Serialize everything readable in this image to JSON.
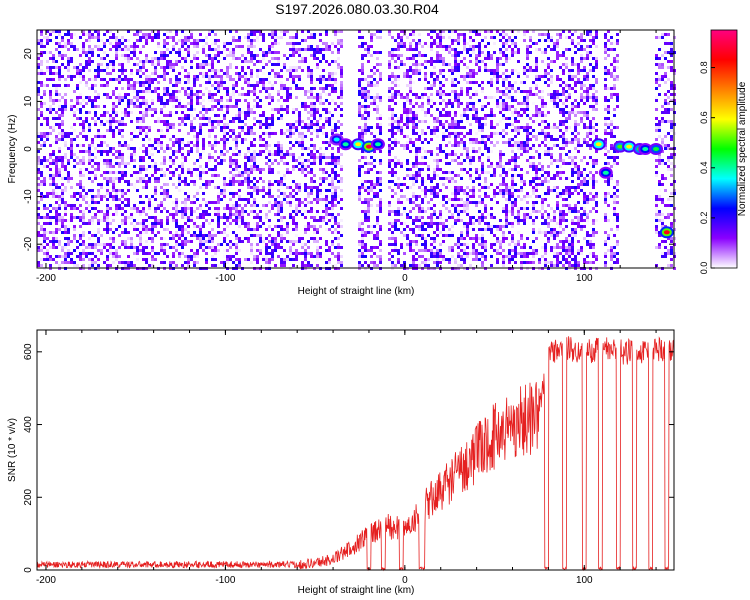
{
  "title": "S197.2026.080.03.30.R04",
  "chart_data": [
    {
      "type": "heatmap",
      "title": "S197.2026.080.03.30.R04",
      "xlabel": "Height of straight line (km)",
      "ylabel": "Frequency (Hz)",
      "xlim": [
        -205,
        150
      ],
      "ylim": [
        -25,
        25
      ],
      "x_ticks": [
        -200,
        -100,
        0,
        100
      ],
      "y_ticks": [
        -20,
        -10,
        0,
        10,
        20
      ],
      "colorbar": {
        "label": "Normalized spectral amplitude",
        "range": [
          0,
          0.95
        ],
        "ticks": [
          0.0,
          0.2,
          0.4,
          0.6,
          0.8
        ],
        "colors": [
          "#ffffff",
          "#8a00ff",
          "#0000ff",
          "#00ffff",
          "#00ff00",
          "#ffff00",
          "#ff8000",
          "#ff0000",
          "#ff0080"
        ]
      },
      "noise_level": 0.1,
      "blank_gaps_km": [
        [
          -35,
          -27
        ],
        [
          -14,
          -10
        ],
        [
          106,
          110
        ],
        [
          118,
          138
        ]
      ],
      "strong_features": [
        {
          "x": -38,
          "f": 2,
          "amp": 0.35
        },
        {
          "x": -33,
          "f": 1,
          "amp": 0.4
        },
        {
          "x": -26,
          "f": 1,
          "amp": 0.6
        },
        {
          "x": -20,
          "f": 0.5,
          "amp": 0.88
        },
        {
          "x": -15,
          "f": 1,
          "amp": 0.4
        },
        {
          "x": 108,
          "f": 1,
          "amp": 0.6
        },
        {
          "x": 112,
          "f": -5,
          "amp": 0.4
        },
        {
          "x": 120,
          "f": 0.5,
          "amp": 0.5
        },
        {
          "x": 125,
          "f": 0.5,
          "amp": 0.6
        },
        {
          "x": 131,
          "f": 0,
          "amp": 0.5
        },
        {
          "x": 134,
          "f": 0,
          "amp": 0.4
        },
        {
          "x": 140,
          "f": 0,
          "amp": 0.45
        },
        {
          "x": 146,
          "f": -17.5,
          "amp": 0.85
        }
      ]
    },
    {
      "type": "line",
      "xlabel": "Height of straight line (km)",
      "ylabel": "SNR (10 * v/v)",
      "xlim": [
        -205,
        150
      ],
      "ylim": [
        0,
        660
      ],
      "x_ticks": [
        -200,
        -100,
        0,
        100
      ],
      "y_ticks": [
        0,
        200,
        400,
        600
      ],
      "series": [
        {
          "name": "SNR",
          "color": "#e52020",
          "x": [
            -205,
            -60,
            -50,
            -40,
            -30,
            -20,
            -10,
            0,
            10,
            20,
            30,
            40,
            50,
            60,
            70,
            75,
            80,
            90,
            100,
            110,
            120,
            130,
            140,
            150
          ],
          "y": [
            15,
            15,
            20,
            30,
            60,
            100,
            120,
            110,
            170,
            220,
            270,
            320,
            370,
            400,
            420,
            440,
            600,
            610,
            600,
            610,
            600,
            600,
            610,
            600
          ]
        }
      ],
      "dropouts_km": [
        [
          -21,
          -19
        ],
        [
          -13,
          -11
        ],
        [
          -3,
          -1
        ],
        [
          8,
          11
        ],
        [
          78,
          80
        ],
        [
          88,
          90
        ],
        [
          99,
          101
        ],
        [
          108,
          110
        ],
        [
          118,
          120
        ],
        [
          127,
          129
        ],
        [
          136,
          138
        ],
        [
          145,
          147
        ]
      ]
    }
  ]
}
